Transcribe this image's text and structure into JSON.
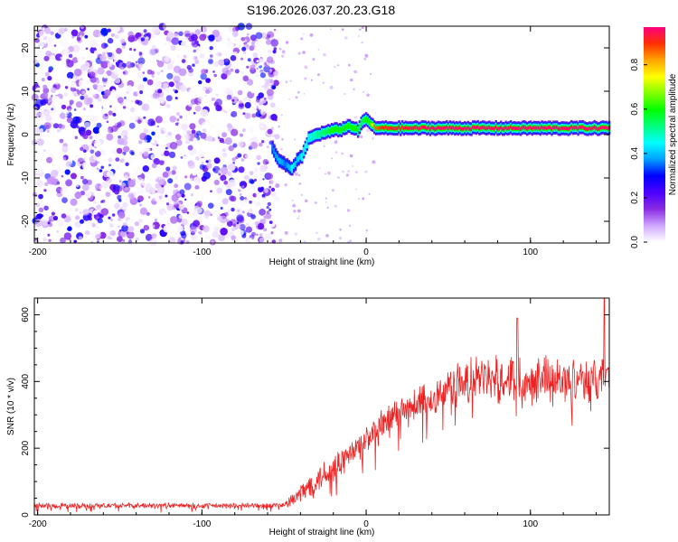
{
  "title": "S196.2026.037.20.23.G18",
  "chart_data": [
    {
      "type": "heatmap",
      "name": "spectrogram",
      "xlabel": "Height of straight line (km)",
      "ylabel": "Frequency (Hz)",
      "xlim": [
        -202,
        148
      ],
      "ylim": [
        -25,
        25
      ],
      "xticks": [
        -200,
        -100,
        0,
        100
      ],
      "xtick_labels": [
        "-200",
        "-100",
        "0",
        "100"
      ],
      "yticks": [
        -20,
        -10,
        0,
        10,
        20
      ],
      "ytick_labels": [
        "-20",
        "-10",
        "0",
        "10",
        "20"
      ],
      "colorbar": {
        "label": "Normalized spectral amplitude",
        "range": [
          0,
          0.97
        ],
        "ticks": [
          0,
          0.2,
          0.4,
          0.6,
          0.8
        ],
        "tick_labels": [
          "0.0",
          "0.2",
          "0.4",
          "0.6",
          "0.8"
        ],
        "colormap": [
          "#ffffff",
          "#cfa6ff",
          "#8a2be2",
          "#4b00ff",
          "#0000ff",
          "#00a0ff",
          "#00ffff",
          "#00ff80",
          "#00ff00",
          "#80ff00",
          "#ffff00",
          "#ffa500",
          "#ff3000",
          "#ff0080"
        ]
      },
      "noise_region": {
        "x_range": [
          -202,
          -54
        ],
        "description": "random low-amplitude noise"
      },
      "ridge": {
        "x": [
          -57,
          -53,
          -49,
          -45,
          -42,
          -39,
          -35,
          -30,
          -25,
          -20,
          -15,
          -10,
          -5,
          -2,
          0,
          2,
          5,
          10,
          20,
          40,
          60,
          80,
          100,
          120,
          148
        ],
        "freq": [
          -3,
          -6,
          -7,
          -8,
          -6,
          -5,
          -1,
          0,
          0.5,
          1,
          1.2,
          2,
          1,
          3,
          3.5,
          3,
          1.5,
          1.5,
          1.5,
          1.5,
          1.5,
          1.5,
          1.5,
          1.5,
          1.5
        ],
        "amplitude": [
          0.35,
          0.4,
          0.35,
          0.45,
          0.4,
          0.45,
          0.45,
          0.5,
          0.55,
          0.6,
          0.6,
          0.6,
          0.6,
          0.55,
          0.6,
          0.6,
          0.85,
          0.9,
          0.92,
          0.95,
          0.95,
          0.95,
          0.95,
          0.95,
          0.95
        ]
      }
    },
    {
      "type": "line",
      "name": "snr",
      "xlabel": "Height of straight line (km)",
      "ylabel": "SNR (10 * v/v)",
      "xlim": [
        -202,
        148
      ],
      "ylim": [
        0,
        650
      ],
      "xticks": [
        -200,
        -100,
        0,
        100
      ],
      "xtick_labels": [
        "-200",
        "-100",
        "0",
        "100"
      ],
      "yticks": [
        0,
        200,
        400,
        600
      ],
      "ytick_labels": [
        "0",
        "200",
        "400",
        "600"
      ],
      "color": "#ee2222",
      "series": [
        {
          "name": "SNR",
          "x": [
            -202,
            -180,
            -160,
            -140,
            -120,
            -100,
            -80,
            -60,
            -50,
            -45,
            -42,
            -38,
            -35,
            -30,
            -25,
            -20,
            -15,
            -10,
            -5,
            0,
            5,
            10,
            15,
            20,
            30,
            40,
            50,
            60,
            70,
            80,
            90,
            100,
            110,
            120,
            130,
            140,
            145,
            148
          ],
          "y": [
            28,
            27,
            28,
            27,
            28,
            27,
            27,
            28,
            30,
            42,
            55,
            70,
            85,
            105,
            125,
            140,
            160,
            180,
            200,
            225,
            240,
            265,
            290,
            300,
            330,
            345,
            385,
            395,
            410,
            405,
            415,
            410,
            420,
            400,
            420,
            395,
            430,
            410
          ],
          "noise_amplitude": [
            10,
            10,
            10,
            10,
            10,
            10,
            10,
            10,
            10,
            30,
            35,
            45,
            50,
            50,
            55,
            55,
            55,
            55,
            55,
            60,
            60,
            60,
            60,
            60,
            65,
            70,
            75,
            80,
            80,
            85,
            85,
            85,
            85,
            80,
            80,
            80,
            80,
            80
          ],
          "peak_annotations": {
            "x": [
              92,
              145
            ],
            "y": [
              590,
              650
            ]
          }
        }
      ]
    }
  ]
}
